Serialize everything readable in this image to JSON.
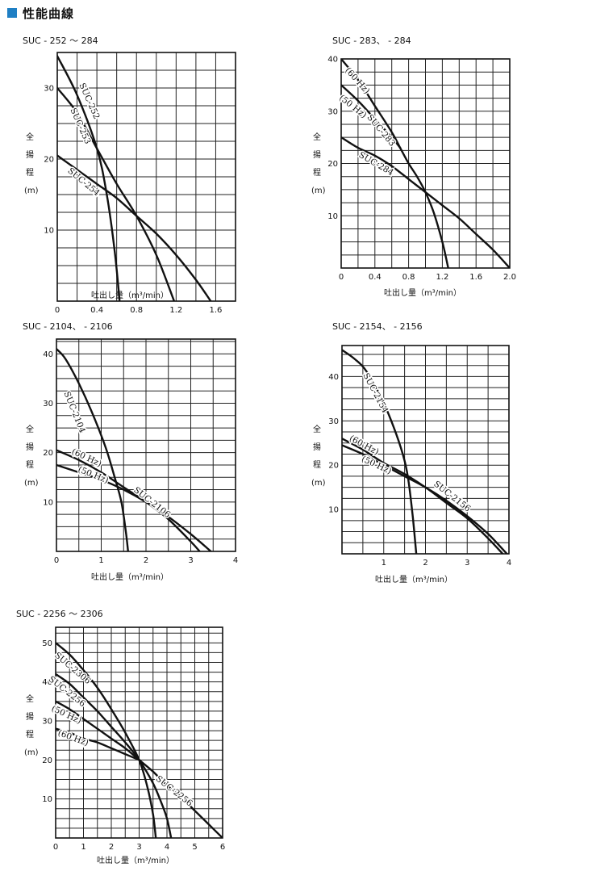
{
  "header": {
    "title": "性能曲線",
    "marker_color": "#1f7fc4"
  },
  "axis_text": {
    "ylabel_chars": [
      "全",
      "揚",
      "程",
      "(m)"
    ],
    "xlabel": "吐出し量（m³/min）"
  },
  "chart_data": [
    {
      "type": "line",
      "title": "SUC - 252 ～ 284",
      "xlabel": "吐出し量（m³/min）",
      "ylabel": "全揚程（m）",
      "xlim": [
        0,
        1.8
      ],
      "ylim": [
        0,
        35
      ],
      "x_ticks": [
        "0",
        "0.4",
        "0.8",
        "1.2",
        "1.6"
      ],
      "x_tick_values": [
        0,
        0.4,
        0.8,
        1.2,
        1.6
      ],
      "y_ticks": [
        "10",
        "20",
        "30"
      ],
      "y_tick_values": [
        10,
        20,
        30
      ],
      "grid_x": 0.2,
      "grid_y": 2.5,
      "series": [
        {
          "name": "SUC-252",
          "x": [
            0,
            0.2,
            0.4,
            0.5,
            0.58,
            0.63
          ],
          "y": [
            34.5,
            29,
            21.5,
            15,
            7,
            0
          ]
        },
        {
          "name": "SUC-253",
          "x": [
            0,
            0.2,
            0.4,
            0.6,
            0.8,
            1.0,
            1.18
          ],
          "y": [
            30,
            26.5,
            21.5,
            16.5,
            12,
            6.5,
            0
          ]
        },
        {
          "name": "SUC-254",
          "x": [
            0,
            0.2,
            0.4,
            0.6,
            0.8,
            1.0,
            1.2,
            1.4,
            1.55
          ],
          "y": [
            20.5,
            18.5,
            16.5,
            14.5,
            12,
            9.5,
            6.5,
            3,
            0
          ]
        }
      ],
      "labels": [
        {
          "text": "SUC-252",
          "x": 0.3,
          "y": 28,
          "angle": 66
        },
        {
          "text": "SUC-253",
          "x": 0.21,
          "y": 24.5,
          "angle": 66
        },
        {
          "text": "SUC-254",
          "x": 0.25,
          "y": 16.5,
          "angle": 40
        }
      ]
    },
    {
      "type": "line",
      "title": "SUC - 283、 - 284",
      "xlabel": "吐出し量（m³/min）",
      "ylabel": "全揚程（m）",
      "xlim": [
        0,
        2.0
      ],
      "ylim": [
        0,
        40
      ],
      "x_ticks": [
        "0",
        "0.4",
        "0.8",
        "1.2",
        "1.6",
        "2.0"
      ],
      "x_tick_values": [
        0,
        0.4,
        0.8,
        1.2,
        1.6,
        2.0
      ],
      "y_ticks": [
        "10",
        "20",
        "30",
        "40"
      ],
      "y_tick_values": [
        10,
        20,
        30,
        40
      ],
      "grid_x": 0.2,
      "grid_y": 2.5,
      "series": [
        {
          "name": "SUC-283 (60 Hz)",
          "x": [
            0,
            0.2,
            0.4,
            0.6,
            0.7
          ],
          "y": [
            40,
            36,
            31,
            26,
            23
          ]
        },
        {
          "name": "SUC-283 (50 Hz)",
          "x": [
            0,
            0.2,
            0.4,
            0.6,
            0.7
          ],
          "y": [
            35,
            32,
            28.5,
            25,
            23
          ]
        },
        {
          "name": "SUC-283",
          "x": [
            0.7,
            0.8,
            0.9,
            1.0,
            1.1,
            1.2,
            1.27
          ],
          "y": [
            23,
            20,
            17.5,
            14.5,
            10.5,
            5,
            0
          ]
        },
        {
          "name": "SUC-284",
          "x": [
            0,
            0.2,
            0.4,
            0.6,
            0.8,
            1.0,
            1.2,
            1.4,
            1.6,
            1.8,
            2.0
          ],
          "y": [
            25,
            23,
            21.5,
            19.5,
            17,
            14.5,
            12,
            9.5,
            6.5,
            3.5,
            0
          ]
        }
      ],
      "labels": [
        {
          "text": "(60 Hz)",
          "x": 0.17,
          "y": 35.5,
          "angle": 48
        },
        {
          "text": "(50 Hz)",
          "x": 0.12,
          "y": 30.5,
          "angle": 38
        },
        {
          "text": "SUC-283",
          "x": 0.45,
          "y": 26,
          "angle": 50
        },
        {
          "text": "SUC-284",
          "x": 0.4,
          "y": 19.5,
          "angle": 30
        }
      ]
    },
    {
      "type": "line",
      "title": "SUC - 2104、 - 2106",
      "xlabel": "吐出し量（m³/min）",
      "ylabel": "全揚程（m）",
      "xlim": [
        0,
        4
      ],
      "ylim": [
        0,
        43
      ],
      "x_ticks": [
        "0",
        "1",
        "2",
        "3",
        "4"
      ],
      "x_tick_values": [
        0,
        1,
        2,
        3,
        4
      ],
      "y_ticks": [
        "10",
        "20",
        "30",
        "40"
      ],
      "y_tick_values": [
        10,
        20,
        30,
        40
      ],
      "grid_x": 0.5,
      "grid_y": 2.5,
      "series": [
        {
          "name": "SUC-2104",
          "x": [
            0,
            0.2,
            0.5,
            0.8,
            1.1,
            1.3,
            1.45,
            1.55,
            1.6
          ],
          "y": [
            41,
            39,
            34,
            28,
            21,
            15,
            10,
            4,
            0
          ]
        },
        {
          "name": "SUC-2106 (60 Hz)",
          "x": [
            0,
            0.5,
            1.0,
            1.5,
            2.0,
            2.5,
            3.0,
            3.2
          ],
          "y": [
            20.5,
            18.5,
            16,
            13,
            10,
            6.5,
            2,
            0
          ]
        },
        {
          "name": "SUC-2106 (50 Hz)",
          "x": [
            0,
            0.5,
            1.0,
            1.5,
            2.0,
            2.5,
            3.0,
            3.45
          ],
          "y": [
            17.5,
            16,
            14.5,
            12.5,
            10,
            7,
            3.5,
            0
          ]
        }
      ],
      "labels": [
        {
          "text": "SUC-2104",
          "x": 0.35,
          "y": 28,
          "angle": 68
        },
        {
          "text": "(60 Hz)",
          "x": 0.65,
          "y": 18.5,
          "angle": 25
        },
        {
          "text": "(50 Hz)",
          "x": 0.8,
          "y": 15,
          "angle": 22
        },
        {
          "text": "SUC-2106",
          "x": 2.1,
          "y": 9.5,
          "angle": 38
        }
      ]
    },
    {
      "type": "line",
      "title": "SUC - 2154、 - 2156",
      "xlabel": "吐出し量（m³/min）",
      "ylabel": "全揚程（m）",
      "xlim": [
        0,
        4
      ],
      "ylim": [
        0,
        47
      ],
      "x_ticks": [
        "1",
        "2",
        "3",
        "4"
      ],
      "x_tick_values": [
        1,
        2,
        3,
        4
      ],
      "y_ticks": [
        "10",
        "20",
        "30",
        "40"
      ],
      "y_tick_values": [
        10,
        20,
        30,
        40
      ],
      "grid_x": 0.5,
      "grid_y": 2.5,
      "series": [
        {
          "name": "SUC-2154",
          "x": [
            0,
            0.3,
            0.6,
            1.0,
            1.3,
            1.5,
            1.6,
            1.7,
            1.78
          ],
          "y": [
            46,
            44,
            41,
            34,
            27,
            21,
            16,
            8,
            0
          ]
        },
        {
          "name": "SUC-2156 (60 Hz)",
          "x": [
            0,
            0.5,
            1.0,
            1.5,
            2.0,
            2.5,
            3.0,
            3.5,
            3.85
          ],
          "y": [
            26,
            23.5,
            20.5,
            18,
            15,
            11.5,
            8,
            3.5,
            0
          ]
        },
        {
          "name": "SUC-2156 (50 Hz)",
          "x": [
            0,
            0.5,
            1.0,
            1.5,
            2.0,
            2.5,
            3.0,
            3.5,
            3.95
          ],
          "y": [
            24.5,
            22.5,
            20,
            17.5,
            15,
            12,
            8.5,
            4.5,
            0
          ]
        }
      ],
      "labels": [
        {
          "text": "SUC-2154",
          "x": 0.75,
          "y": 36,
          "angle": 62
        },
        {
          "text": "(60 Hz)",
          "x": 0.5,
          "y": 24,
          "angle": 28
        },
        {
          "text": "(50 Hz)",
          "x": 0.8,
          "y": 19.5,
          "angle": 25
        },
        {
          "text": "SUC-2156",
          "x": 2.6,
          "y": 12.5,
          "angle": 38
        }
      ]
    },
    {
      "type": "line",
      "title": "SUC - 2256 ～ 2306",
      "xlabel": "吐出し量（m³/min）",
      "ylabel": "全揚程（m）",
      "xlim": [
        0,
        6
      ],
      "ylim": [
        0,
        54
      ],
      "x_ticks": [
        "0",
        "1",
        "2",
        "3",
        "4",
        "5",
        "6"
      ],
      "x_tick_values": [
        0,
        1,
        2,
        3,
        4,
        5,
        6
      ],
      "y_ticks": [
        "10",
        "20",
        "30",
        "40",
        "50"
      ],
      "y_tick_values": [
        10,
        20,
        30,
        40,
        50
      ],
      "grid_x": 0.5,
      "grid_y": 2.5,
      "series": [
        {
          "name": "SUC-2306",
          "x": [
            0,
            0.5,
            1.0,
            1.5,
            2.0,
            2.5,
            3.0,
            3.3,
            3.5,
            3.6
          ],
          "y": [
            50,
            47,
            43,
            38.5,
            33,
            27,
            20,
            13,
            6,
            0
          ]
        },
        {
          "name": "SUC-2256",
          "x": [
            0,
            0.5,
            1.0,
            1.5,
            2.0,
            2.5,
            3.0,
            3.5,
            3.8,
            4.0,
            4.15
          ],
          "y": [
            42,
            39.5,
            36,
            32.5,
            28.5,
            24.5,
            20,
            14,
            9,
            5,
            0
          ]
        },
        {
          "name": "SUC-2256 (50 Hz)",
          "x": [
            0,
            0.5,
            1.0,
            1.5,
            2.0,
            2.5,
            3.0
          ],
          "y": [
            35,
            33,
            30.5,
            28,
            25.5,
            23,
            20
          ]
        },
        {
          "name": "SUC-2256 (60 Hz)",
          "x": [
            0,
            0.5,
            1.0,
            1.5,
            2.0,
            2.5,
            3.0
          ],
          "y": [
            28,
            27,
            25.5,
            24.5,
            23,
            21.5,
            20
          ]
        },
        {
          "name": "SUC-2256",
          "x": [
            3.0,
            3.5,
            4.0,
            4.5,
            5.0,
            5.5,
            6.0
          ],
          "y": [
            20,
            17,
            13.5,
            10.5,
            7,
            3.5,
            0
          ]
        }
      ],
      "labels": [
        {
          "text": "SUC-2306",
          "x": 0.55,
          "y": 43,
          "angle": 40
        },
        {
          "text": "SUC-2256",
          "x": 0.35,
          "y": 37,
          "angle": 38
        },
        {
          "text": "(50 Hz)",
          "x": 0.35,
          "y": 31,
          "angle": 25
        },
        {
          "text": "(60 Hz)",
          "x": 0.6,
          "y": 25,
          "angle": 20
        },
        {
          "text": "SUC-2256",
          "x": 4.2,
          "y": 11.5,
          "angle": 38
        }
      ]
    }
  ]
}
